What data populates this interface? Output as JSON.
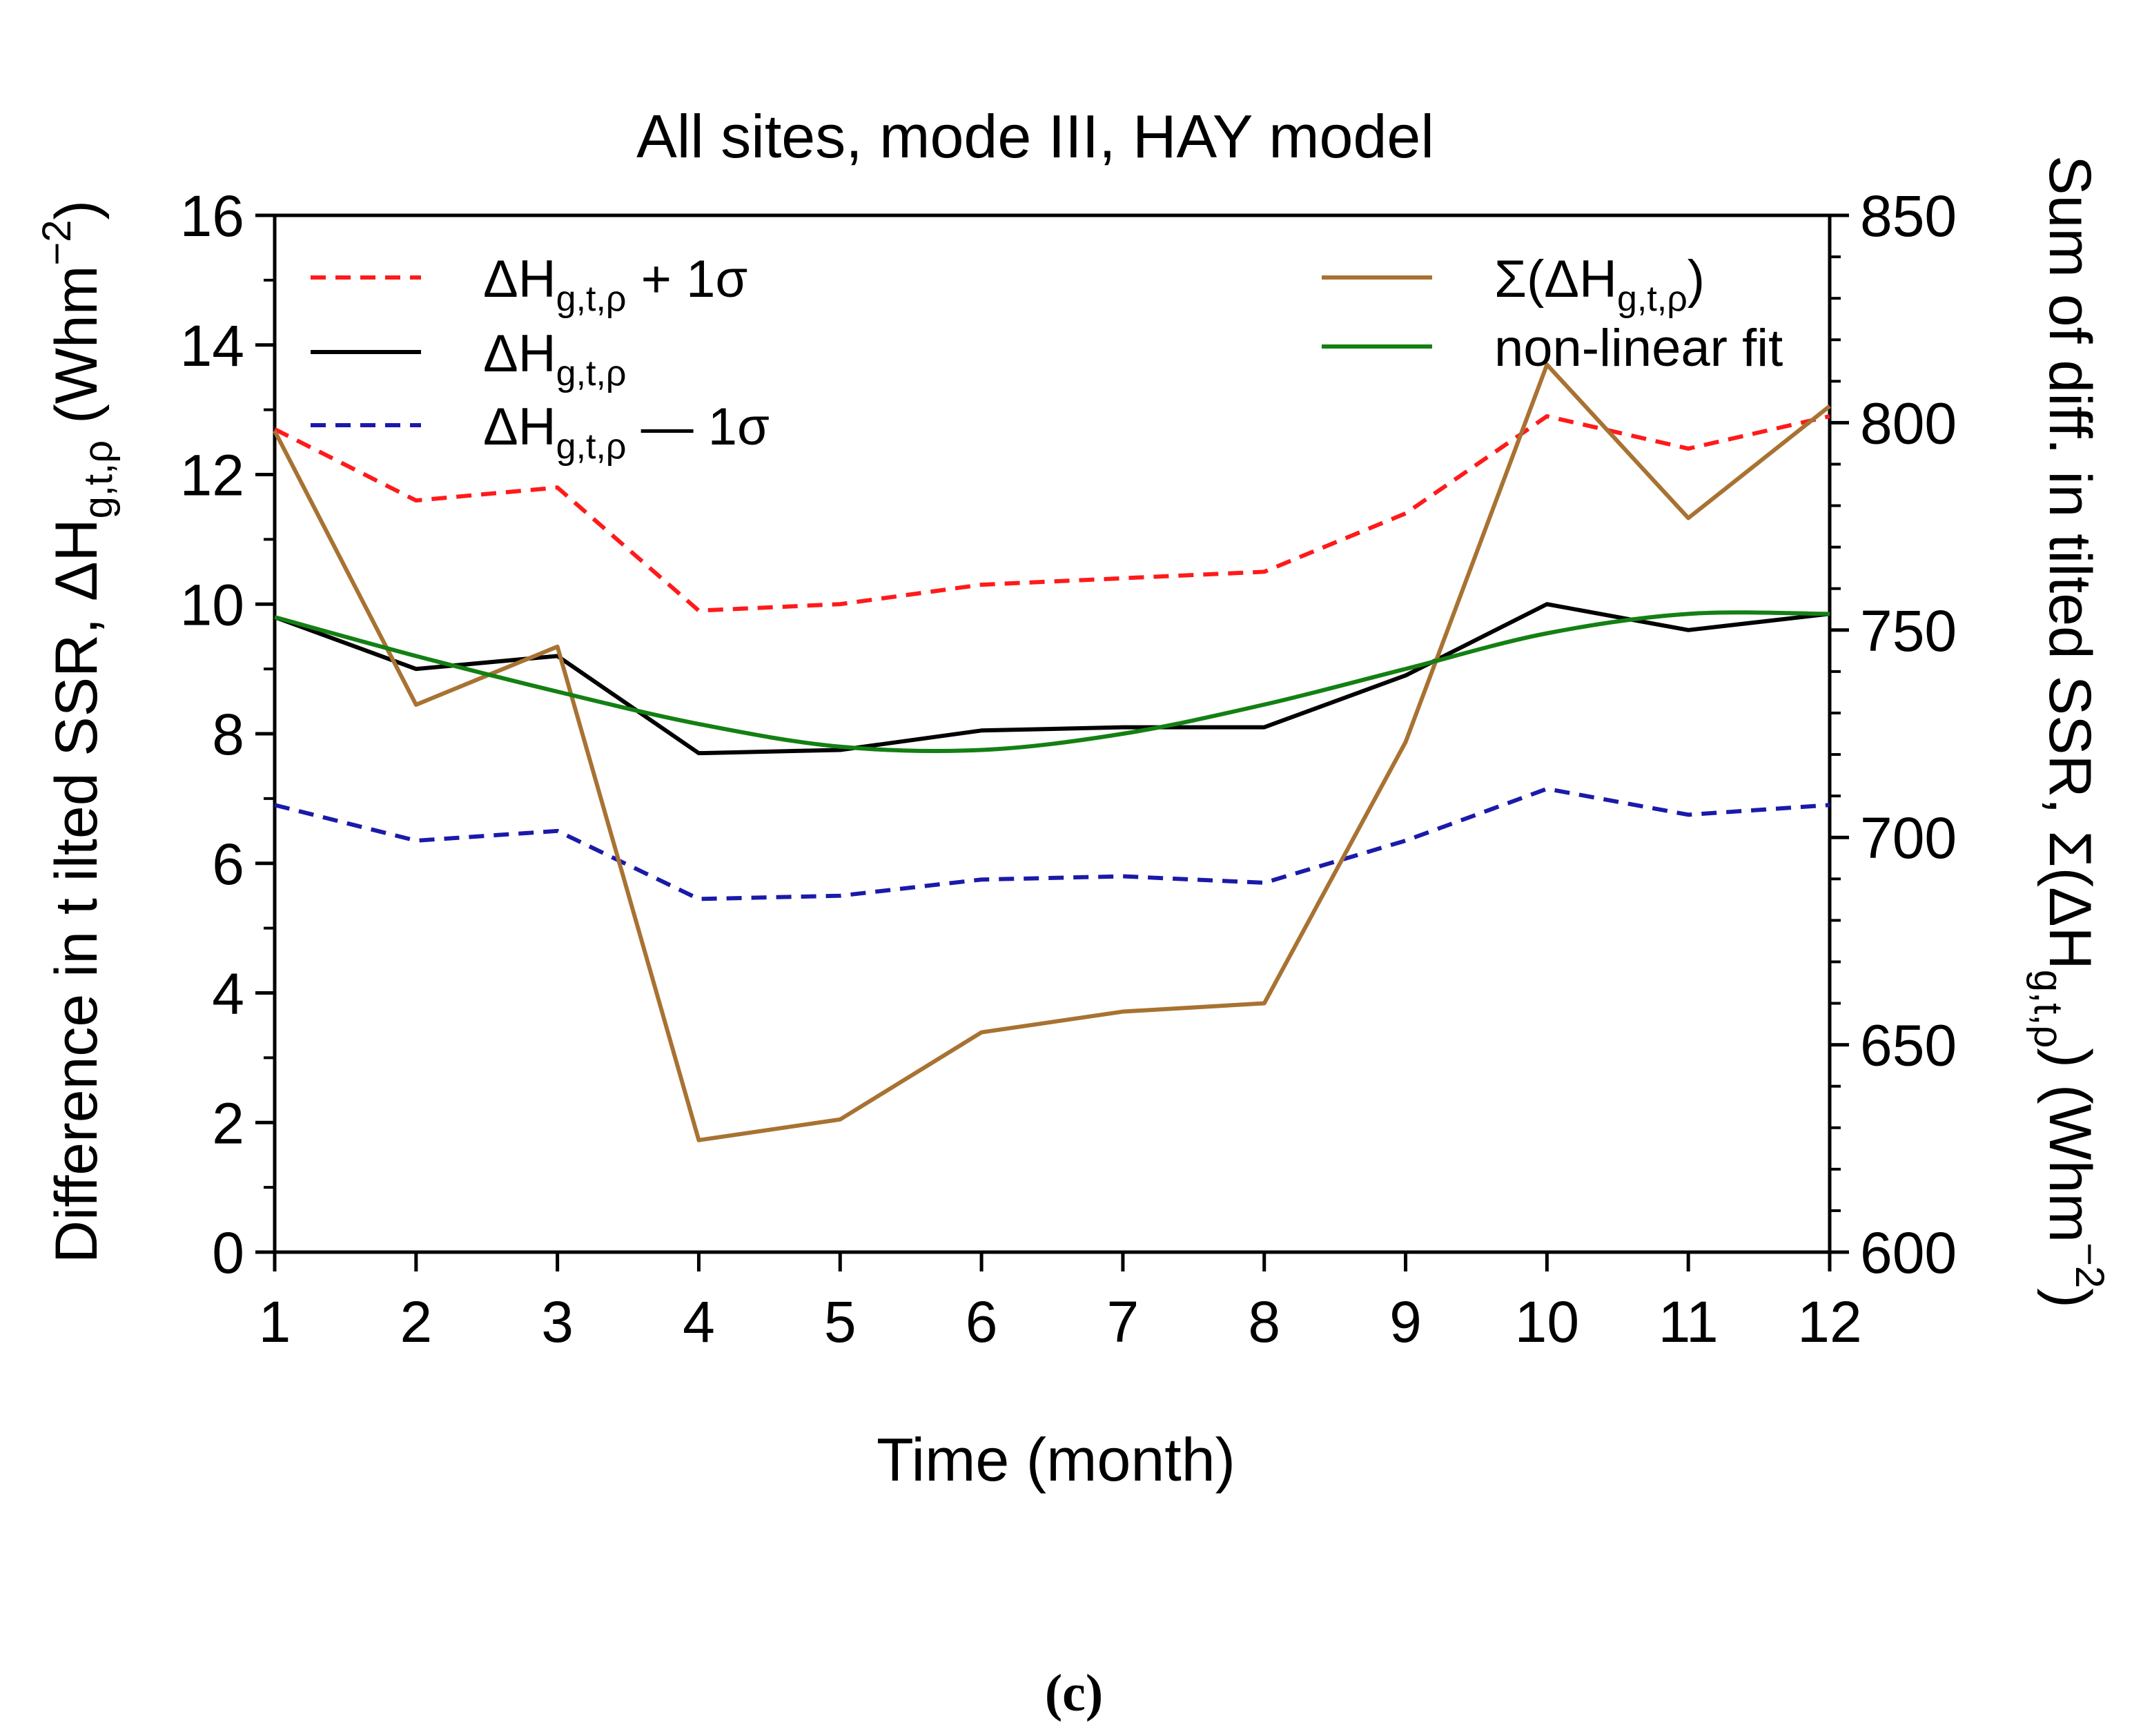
{
  "chart_data": {
    "type": "line",
    "title": "All sites, mode III, HAY model",
    "caption": "(c)",
    "xlabel": "Time (month)",
    "ylabel": {
      "prefix": "Difference in t ilted SSR, ΔH",
      "sub": "g,t,ρ",
      "unit": " (Whm",
      "sup": "−2",
      "close": ")"
    },
    "y2label": {
      "prefix": "Sum of diff. in tilted SSR,  Σ(ΔH",
      "sub": "g,t,ρ",
      "unit": ") (Whm",
      "sup": "−2",
      "close": ")"
    },
    "x": [
      1,
      2,
      3,
      4,
      5,
      6,
      7,
      8,
      9,
      10,
      11,
      12
    ],
    "xticks": [
      "1",
      "2",
      "3",
      "4",
      "5",
      "6",
      "7",
      "8",
      "9",
      "10",
      "11",
      "12"
    ],
    "xlim": [
      1,
      12
    ],
    "ylim": [
      0,
      16
    ],
    "yticks": [
      "0",
      "2",
      "4",
      "6",
      "8",
      "10",
      "12",
      "14",
      "16"
    ],
    "y2lim": [
      600,
      850
    ],
    "y2ticks": [
      "600",
      "650",
      "700",
      "750",
      "800",
      "850"
    ],
    "series": [
      {
        "name_main": "ΔH",
        "name_sub": "g,t,ρ",
        "name_suffix": " + 1σ",
        "axis": "left",
        "color": "#ff1a1a",
        "dash": true,
        "values": [
          12.7,
          11.6,
          11.8,
          9.9,
          10.0,
          10.3,
          10.4,
          10.5,
          11.4,
          12.9,
          12.4,
          12.9
        ]
      },
      {
        "name_main": "ΔH",
        "name_sub": "g,t,ρ",
        "name_suffix": "",
        "axis": "left",
        "color": "#000000",
        "dash": false,
        "values": [
          9.8,
          9.0,
          9.2,
          7.7,
          7.75,
          8.05,
          8.1,
          8.1,
          8.9,
          10.0,
          9.6,
          9.85
        ]
      },
      {
        "name_main": "ΔH",
        "name_sub": "g,t,ρ",
        "name_suffix": " — 1σ",
        "axis": "left",
        "color": "#1a1aaa",
        "dash": true,
        "values": [
          6.9,
          6.35,
          6.5,
          5.45,
          5.5,
          5.75,
          5.8,
          5.7,
          6.35,
          7.15,
          6.75,
          6.9
        ]
      },
      {
        "name_main": "Σ(ΔH",
        "name_sub": "g,t,ρ",
        "name_suffix": ")",
        "axis": "right",
        "color": "#a87232",
        "dash": false,
        "values": [
          798,
          732,
          746,
          627,
          632,
          653,
          658,
          660,
          723,
          814,
          777,
          804
        ]
      },
      {
        "name_main": "non-linear fit",
        "name_sub": "",
        "name_suffix": "",
        "axis": "left",
        "color": "#138013",
        "dash": false,
        "values": [
          9.8,
          9.2,
          8.65,
          8.15,
          7.8,
          7.75,
          8.0,
          8.45,
          9.0,
          9.55,
          9.85,
          9.85
        ]
      }
    ],
    "legend": "top-left and top-right inside plot",
    "grid": false
  }
}
